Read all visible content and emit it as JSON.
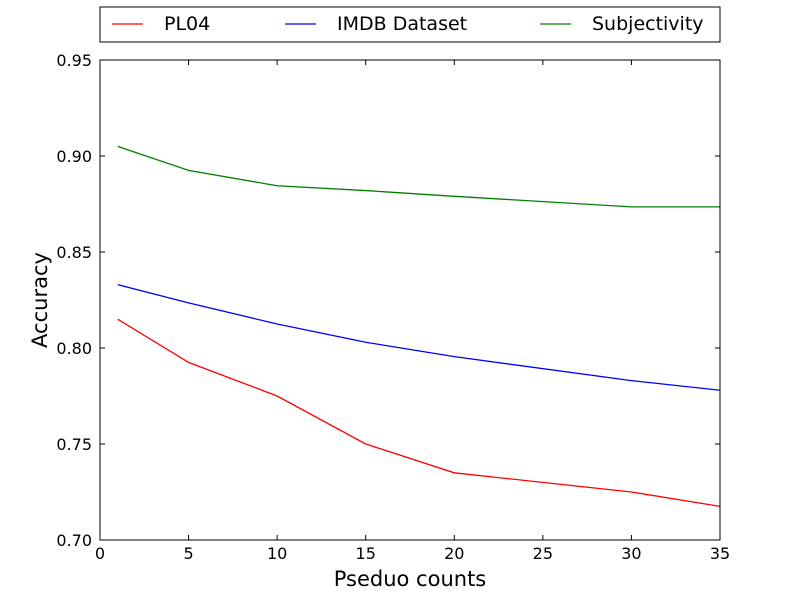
{
  "chart_data": {
    "type": "line",
    "xlabel": "Pseduo counts",
    "ylabel": "Accuracy",
    "xlim": [
      0,
      35
    ],
    "ylim": [
      0.7,
      0.95
    ],
    "xticks": [
      "0",
      "5",
      "10",
      "15",
      "20",
      "25",
      "30",
      "35"
    ],
    "yticks": [
      "0.70",
      "0.75",
      "0.80",
      "0.85",
      "0.90",
      "0.95"
    ],
    "grid": false,
    "legend_position": "top, above plot",
    "x": [
      1,
      5,
      10,
      15,
      20,
      30,
      35
    ],
    "series": [
      {
        "name": "PL04",
        "color": "#ff0000",
        "values": [
          0.815,
          0.7925,
          0.775,
          0.75,
          0.735,
          0.725,
          0.7175
        ]
      },
      {
        "name": "IMDB Dataset",
        "color": "#0000ff",
        "values": [
          0.833,
          0.8235,
          0.8125,
          0.803,
          0.7955,
          0.783,
          0.778
        ]
      },
      {
        "name": "Subjectivity",
        "color": "#008000",
        "values": [
          0.905,
          0.8925,
          0.8845,
          0.882,
          0.879,
          0.8735,
          0.8735
        ]
      }
    ]
  }
}
